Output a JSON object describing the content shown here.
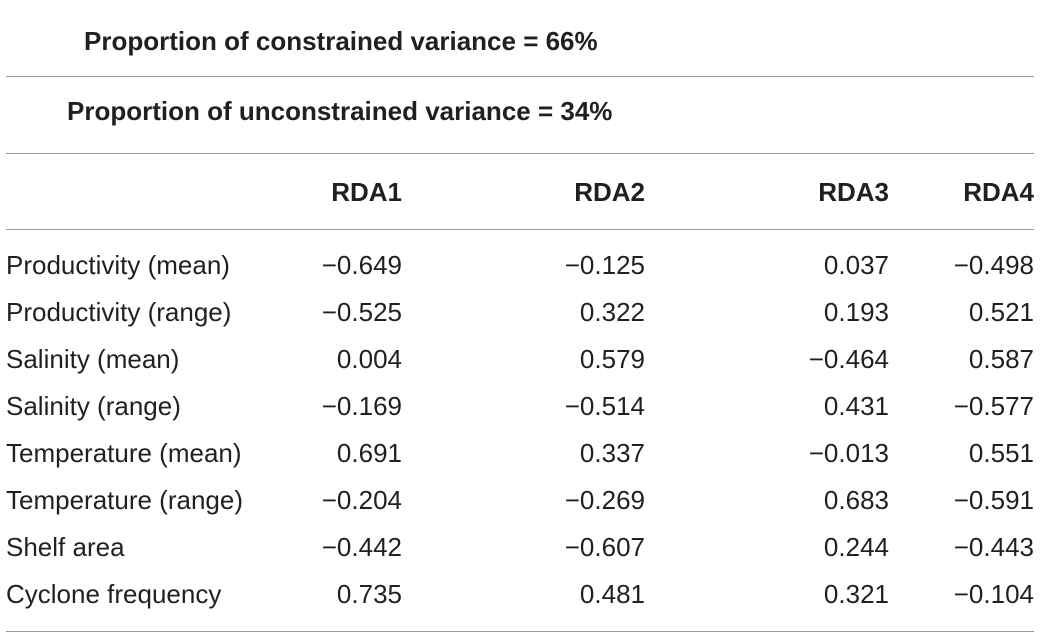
{
  "captions": {
    "constrained": "Proportion of constrained variance = 66%",
    "unconstrained": "Proportion of unconstrained variance = 34%"
  },
  "table": {
    "columns": [
      "",
      "RDA1",
      "RDA2",
      "RDA3",
      "RDA4"
    ],
    "rows": [
      {
        "label": "Productivity (mean)",
        "values": [
          "−0.649",
          "−0.125",
          "0.037",
          "−0.498"
        ]
      },
      {
        "label": "Productivity (range)",
        "values": [
          "−0.525",
          "0.322",
          "0.193",
          "0.521"
        ]
      },
      {
        "label": "Salinity (mean)",
        "values": [
          "0.004",
          "0.579",
          "−0.464",
          "0.587"
        ]
      },
      {
        "label": "Salinity (range)",
        "values": [
          "−0.169",
          "−0.514",
          "0.431",
          "−0.577"
        ]
      },
      {
        "label": "Temperature (mean)",
        "values": [
          "0.691",
          "0.337",
          "−0.013",
          "0.551"
        ]
      },
      {
        "label": "Temperature (range)",
        "values": [
          "−0.204",
          "−0.269",
          "0.683",
          "−0.591"
        ]
      },
      {
        "label": "Shelf area",
        "values": [
          "−0.442",
          "−0.607",
          "0.244",
          "−0.443"
        ]
      },
      {
        "label": "Cyclone frequency",
        "values": [
          "0.735",
          "0.481",
          "0.321",
          "−0.104"
        ]
      }
    ]
  }
}
